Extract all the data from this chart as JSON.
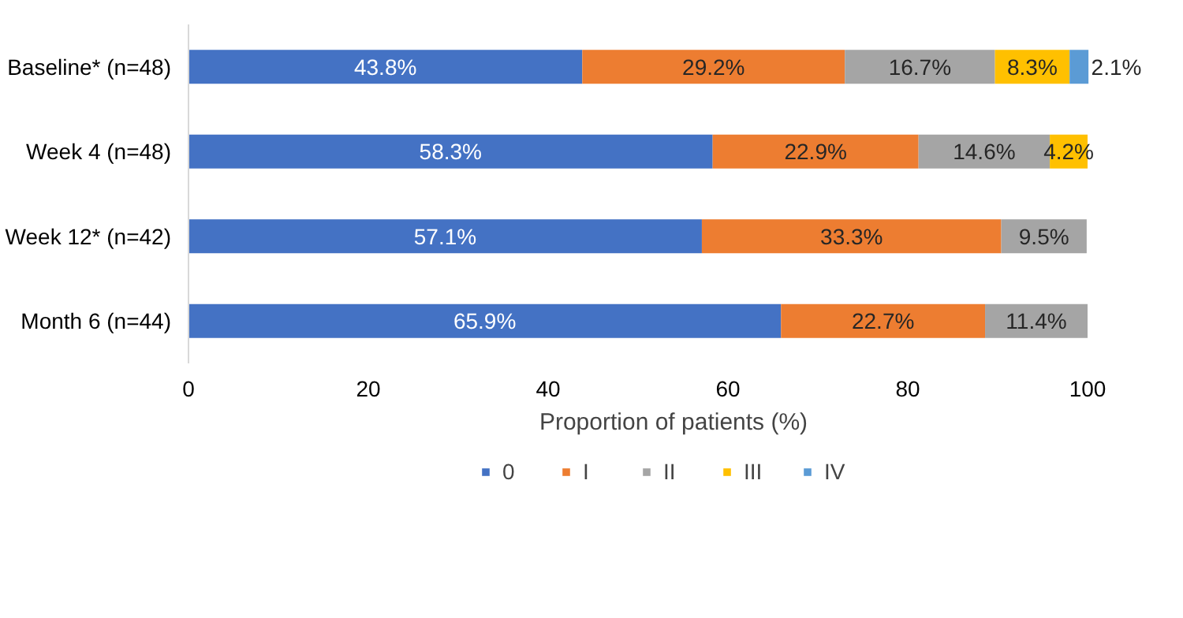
{
  "chart_data": {
    "type": "bar",
    "orientation": "horizontal",
    "stacked": true,
    "xlabel": "Proportion of patients (%)",
    "categories": [
      "Baseline* (n=48)",
      "Week 4 (n=48)",
      "Week 12* (n=42)",
      "Month 6 (n=44)"
    ],
    "series": [
      {
        "name": "0",
        "color": "#4472c4",
        "values": [
          43.8,
          58.3,
          57.1,
          65.9
        ],
        "value_labels": [
          "43.8%",
          "58.3%",
          "57.1%",
          "65.9%"
        ]
      },
      {
        "name": "I",
        "color": "#ed7d31",
        "values": [
          29.2,
          22.9,
          33.3,
          22.7
        ],
        "value_labels": [
          "29.2%",
          "22.9%",
          "33.3%",
          "22.7%"
        ]
      },
      {
        "name": "II",
        "color": "#a5a5a5",
        "values": [
          16.7,
          14.6,
          9.5,
          11.4
        ],
        "value_labels": [
          "16.7%",
          "14.6%",
          "9.5%",
          "11.4%"
        ]
      },
      {
        "name": "III",
        "color": "#ffc000",
        "values": [
          8.3,
          4.2,
          null,
          null
        ],
        "value_labels": [
          "8.3%",
          "4.2%",
          null,
          null
        ]
      },
      {
        "name": "IV",
        "color": "#5b9bd5",
        "values": [
          2.1,
          null,
          null,
          null
        ],
        "value_labels": [
          "2.1%",
          null,
          null,
          null
        ]
      }
    ],
    "xlim": [
      0,
      100
    ],
    "xticks": [
      0,
      20,
      40,
      60,
      80,
      100
    ],
    "grid": false,
    "legend": "bottom"
  }
}
